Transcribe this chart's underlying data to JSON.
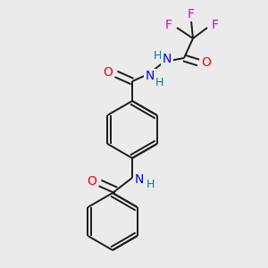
{
  "background_color": "#ebebeb",
  "bond_color": "#1a1a1a",
  "atom_colors": {
    "O": "#ff0000",
    "N": "#0000ff",
    "F": "#dd00dd",
    "H": "#008080",
    "C": "#1a1a1a"
  },
  "font_size_atoms": 10,
  "font_size_H": 9,
  "figsize": [
    3.0,
    3.0
  ],
  "dpi": 100
}
